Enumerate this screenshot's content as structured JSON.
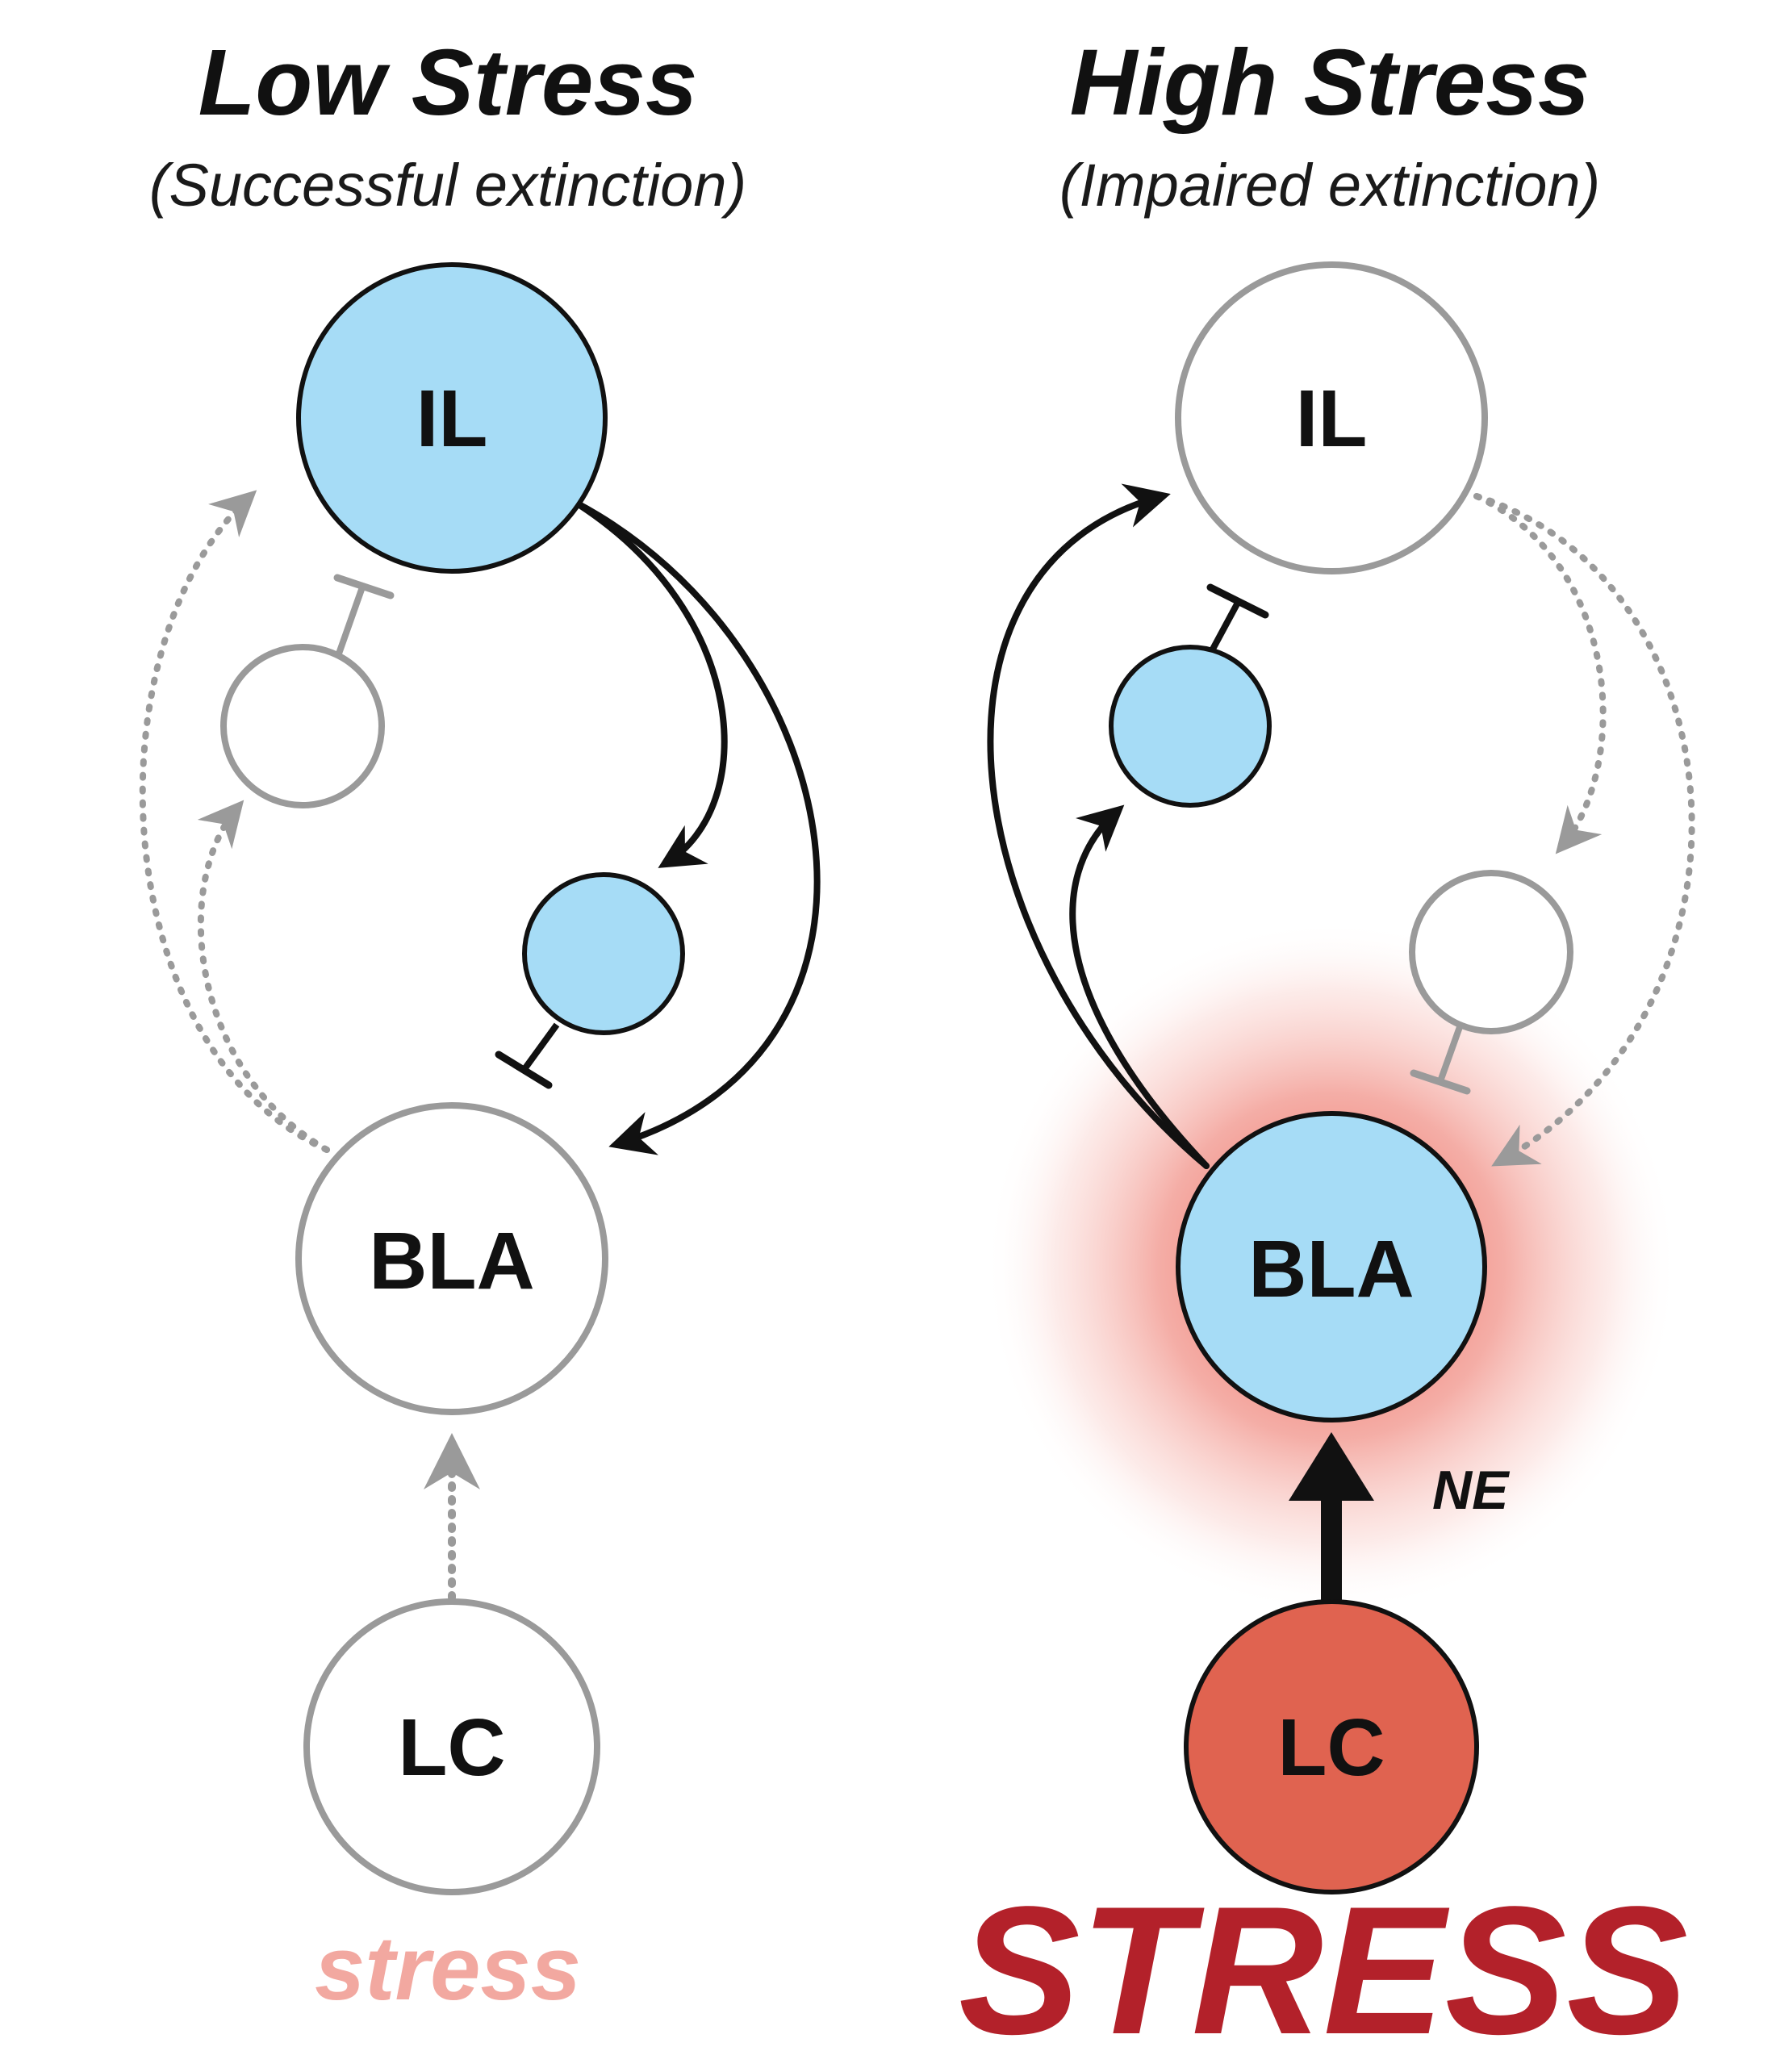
{
  "panels": {
    "low": {
      "title": "Low Stress",
      "subtitle": "(Successful extinction)",
      "nodes": {
        "il": "IL",
        "bla": "BLA",
        "lc": "LC"
      },
      "stress_label": "stress"
    },
    "high": {
      "title": "High Stress",
      "subtitle": "(Impaired extinction)",
      "nodes": {
        "il": "IL",
        "bla": "BLA",
        "lc": "LC"
      },
      "ne_label": "NE",
      "stress_label": "STRESS"
    }
  },
  "colors": {
    "active_node_fill": "#a6dcf6",
    "lc_stress_fill": "#e06350",
    "stress_glow": "#e8574a",
    "inactive_stroke": "#9a9a9a",
    "active_stroke": "#111111",
    "stress_small_text": "#f2a8a0",
    "stress_big_text": "#b3212a"
  },
  "icons": {
    "excitatory_ending": "arrowhead",
    "inhibitory_ending": "t-bar"
  }
}
